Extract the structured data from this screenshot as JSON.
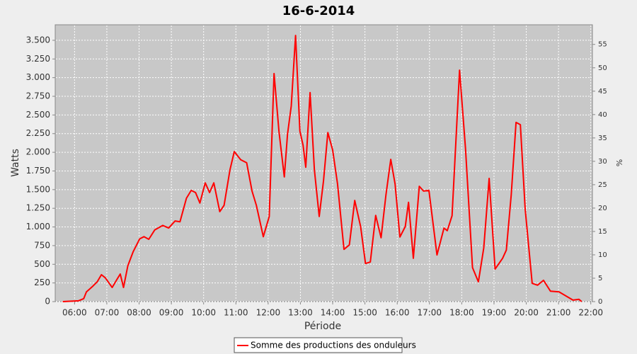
{
  "chart_data": {
    "type": "line",
    "title": "16-6-2014",
    "x_label": "Période",
    "y_label": "Watts",
    "y2_label": "%",
    "xlim": [
      "05:24",
      "22:03"
    ],
    "xticks": [
      "06:00",
      "07:00",
      "08:00",
      "09:00",
      "10:00",
      "11:00",
      "12:00",
      "13:00",
      "14:00",
      "15:00",
      "16:00",
      "17:00",
      "18:00",
      "19:00",
      "20:00",
      "21:00",
      "22:00"
    ],
    "ylim": [
      0,
      3708
    ],
    "yticks": [
      0,
      250,
      500,
      750,
      {
        "value": 1000,
        "label": "1.000"
      },
      {
        "value": 1250,
        "label": "1.250"
      },
      {
        "value": 1500,
        "label": "1.500"
      },
      {
        "value": 1750,
        "label": "1.750"
      },
      {
        "value": 2000,
        "label": "2.000"
      },
      {
        "value": 2250,
        "label": "2.250"
      },
      {
        "value": 2500,
        "label": "2.500"
      },
      {
        "value": 2750,
        "label": "2.750"
      },
      {
        "value": 3000,
        "label": "3.000"
      },
      {
        "value": 3250,
        "label": "3.250"
      },
      {
        "value": 3500,
        "label": "3.500"
      }
    ],
    "y2lim": [
      0,
      59.2
    ],
    "y2ticks": [
      0,
      5,
      10,
      15,
      20,
      25,
      30,
      35,
      40,
      45,
      50,
      55
    ],
    "grid": true,
    "legend": "bottom",
    "x": [
      "05:38",
      "06:07",
      "06:17",
      "06:22",
      "06:33",
      "06:42",
      "06:50",
      "06:57",
      "07:10",
      "07:19",
      "07:25",
      "07:31",
      "07:39",
      "07:49",
      "08:01",
      "08:09",
      "08:18",
      "08:29",
      "08:44",
      "08:55",
      "09:07",
      "09:16",
      "09:28",
      "09:37",
      "09:45",
      "09:53",
      "10:03",
      "10:11",
      "10:19",
      "10:30",
      "10:38",
      "10:49",
      "10:57",
      "11:09",
      "11:20",
      "11:30",
      "11:38",
      "11:51",
      "12:02",
      "12:11",
      "12:20",
      "12:30",
      "12:36",
      "12:43",
      "12:51",
      "12:59",
      "13:05",
      "13:10",
      "13:18",
      "13:26",
      "13:35",
      "13:43",
      "13:51",
      "14:00",
      "14:09",
      "14:21",
      "14:31",
      "14:41",
      "14:52",
      "15:01",
      "15:10",
      "15:20",
      "15:30",
      "15:39",
      "15:48",
      "15:56",
      "16:05",
      "16:15",
      "16:21",
      "16:30",
      "16:41",
      "16:49",
      "16:59",
      "17:14",
      "17:27",
      "17:33",
      "17:42",
      "17:56",
      "18:07",
      "18:20",
      "18:31",
      "18:41",
      "18:51",
      "19:02",
      "19:16",
      "19:23",
      "19:32",
      "19:41",
      "19:49",
      "19:58",
      "20:11",
      "20:21",
      "20:32",
      "20:45",
      "21:01",
      "21:14",
      "21:27",
      "21:38",
      "21:43"
    ],
    "series": [
      {
        "name": "Somme des productions des onduleurs",
        "color": "#ff0000",
        "values": [
          0,
          10,
          40,
          130,
          200,
          265,
          360,
          320,
          190,
          300,
          370,
          190,
          480,
          670,
          840,
          870,
          835,
          960,
          1020,
          985,
          1080,
          1070,
          1385,
          1490,
          1460,
          1320,
          1590,
          1460,
          1590,
          1205,
          1290,
          1765,
          2010,
          1900,
          1860,
          1480,
          1290,
          870,
          1140,
          3055,
          2285,
          1670,
          2240,
          2620,
          3565,
          2285,
          2095,
          1800,
          2800,
          1765,
          1140,
          1620,
          2265,
          2030,
          1575,
          700,
          760,
          1355,
          1005,
          510,
          530,
          1155,
          855,
          1430,
          1905,
          1575,
          865,
          1005,
          1330,
          580,
          1545,
          1480,
          1490,
          625,
          985,
          950,
          1150,
          3100,
          2050,
          455,
          265,
          720,
          1650,
          435,
          580,
          690,
          1430,
          2400,
          2370,
          1240,
          245,
          220,
          285,
          140,
          130,
          75,
          20,
          30,
          0
        ]
      }
    ]
  }
}
